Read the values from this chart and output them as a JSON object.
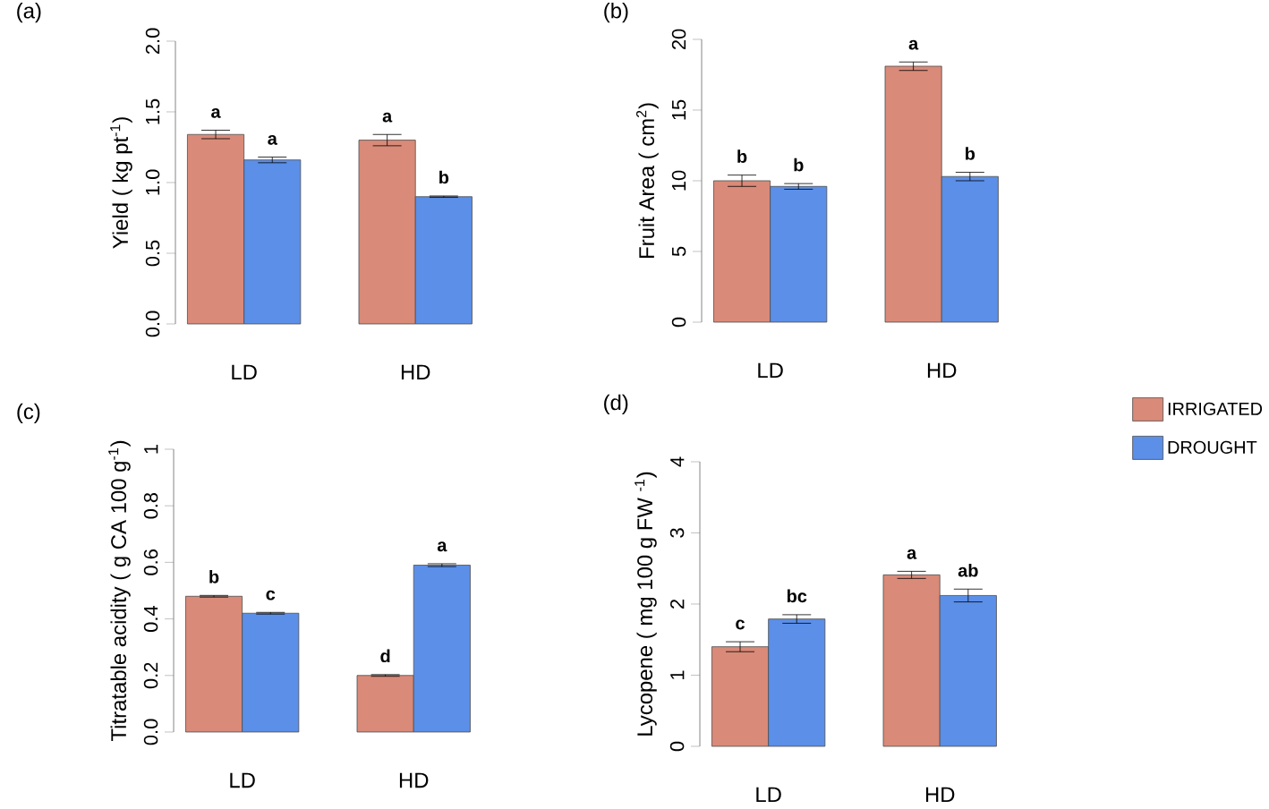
{
  "chart_data": [
    {
      "type": "bar",
      "title": "(a)",
      "ylabel": "Yield ( kg pt$^{-1}$)",
      "categories": [
        "LD",
        "HD"
      ],
      "ylim": [
        0,
        2
      ],
      "yticks": [
        {
          "value": 0,
          "label": "0.0"
        },
        {
          "value": 0.5,
          "label": "0.5"
        },
        {
          "value": 1,
          "label": "1.0"
        },
        {
          "value": 1.5,
          "label": "1.5"
        },
        {
          "value": 2,
          "label": "2.0"
        }
      ],
      "series": [
        {
          "color": "#d98a78",
          "values": [
            1.34,
            1.3
          ],
          "errors": [
            0.03,
            0.04
          ],
          "value_labels": [
            "a",
            "a"
          ]
        },
        {
          "color": "#5b8fe8",
          "values": [
            1.16,
            0.9
          ],
          "errors": [
            0.02,
            0.005
          ],
          "value_labels": [
            "a",
            "b"
          ]
        }
      ]
    },
    {
      "type": "bar",
      "title": "(b)",
      "ylabel": "Fruit Area ( cm$^{2}$)",
      "categories": [
        "LD",
        "HD"
      ],
      "ylim": [
        0,
        20
      ],
      "yticks": [
        0,
        5,
        10,
        15,
        20
      ],
      "series": [
        {
          "color": "#d98a78",
          "values": [
            10.0,
            18.1
          ],
          "errors": [
            0.4,
            0.3
          ],
          "value_labels": [
            "b",
            "a"
          ]
        },
        {
          "color": "#5b8fe8",
          "values": [
            9.6,
            10.3
          ],
          "errors": [
            0.2,
            0.3
          ],
          "value_labels": [
            "b",
            "b"
          ]
        }
      ]
    },
    {
      "type": "bar",
      "title": "(c)",
      "ylabel": "Titratable acidity ( g CA 100 g$^{-1}$)",
      "categories": [
        "LD",
        "HD"
      ],
      "ylim": [
        0,
        1
      ],
      "yticks": [
        {
          "value": 0,
          "label": "0.0"
        },
        {
          "value": 0.2,
          "label": "0.2"
        },
        {
          "value": 0.4,
          "label": "0.4"
        },
        {
          "value": 0.6,
          "label": "0.6"
        },
        {
          "value": 0.8,
          "label": "0.8"
        },
        1
      ],
      "series": [
        {
          "color": "#d98a78",
          "values": [
            0.48,
            0.2
          ],
          "errors": [
            0.003,
            0.003
          ],
          "value_labels": [
            "b",
            "d"
          ]
        },
        {
          "color": "#5b8fe8",
          "values": [
            0.42,
            0.59
          ],
          "errors": [
            0.003,
            0.005
          ],
          "value_labels": [
            "c",
            "a"
          ]
        }
      ]
    },
    {
      "type": "bar",
      "title": "(d)",
      "ylabel": "Lycopene ( mg 100 g FW $^{-1}$)",
      "categories": [
        "LD",
        "HD"
      ],
      "ylim": [
        0,
        4
      ],
      "yticks": [
        0,
        1,
        2,
        3,
        4
      ],
      "legend": "right",
      "series": [
        {
          "name": "IRRIGATED",
          "color": "#d98a78",
          "values": [
            1.4,
            2.41
          ],
          "errors": [
            0.07,
            0.05
          ],
          "value_labels": [
            "c",
            "a"
          ]
        },
        {
          "name": "DROUGHT",
          "color": "#5b8fe8",
          "values": [
            1.79,
            2.12
          ],
          "errors": [
            0.06,
            0.09
          ],
          "value_labels": [
            "bc",
            "ab"
          ]
        }
      ]
    }
  ]
}
